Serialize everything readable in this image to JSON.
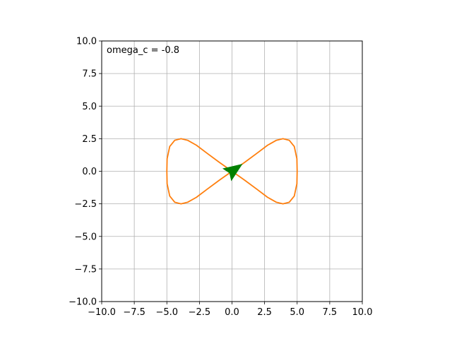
{
  "chart_data": {
    "type": "line",
    "title": "",
    "xlabel": "",
    "ylabel": "",
    "xlim": [
      -10,
      10
    ],
    "ylim": [
      -10,
      10
    ],
    "grid": true,
    "xticks": [
      -10.0,
      -7.5,
      -5.0,
      -2.5,
      0.0,
      2.5,
      5.0,
      7.5,
      10.0
    ],
    "yticks": [
      -10.0,
      -7.5,
      -5.0,
      -2.5,
      0.0,
      2.5,
      5.0,
      7.5,
      10.0
    ],
    "xtick_labels": [
      "−10.0",
      "−7.5",
      "−5.0",
      "−2.5",
      "0.0",
      "2.5",
      "5.0",
      "7.5",
      "10.0"
    ],
    "ytick_labels": [
      "−10.0",
      "−7.5",
      "−5.0",
      "−2.5",
      "0.0",
      "2.5",
      "5.0",
      "7.5",
      "10.0"
    ],
    "annotation": "omega_c = -0.8",
    "series": [
      {
        "color": "#ff7f0e",
        "x": [
          0.0,
          0.98,
          1.91,
          2.73,
          3.41,
          3.91,
          4.39,
          4.78,
          4.98,
          5.0,
          4.98,
          4.78,
          4.39,
          3.91,
          3.41,
          2.73,
          1.91,
          0.98,
          0.0,
          -0.98,
          -1.91,
          -2.73,
          -3.41,
          -3.91,
          -4.39,
          -4.78,
          -4.98,
          -5.0,
          -4.98,
          -4.78,
          -4.39,
          -3.91,
          -3.41,
          -2.73,
          -1.91,
          -0.98,
          0.0
        ],
        "y": [
          0.0,
          0.69,
          1.38,
          2.0,
          2.38,
          2.5,
          2.38,
          1.9,
          0.96,
          0.0,
          -0.96,
          -1.9,
          -2.38,
          -2.5,
          -2.38,
          -2.0,
          -1.38,
          -0.69,
          0.0,
          0.69,
          1.38,
          2.0,
          2.38,
          2.5,
          2.38,
          1.9,
          0.96,
          0.0,
          -0.96,
          -1.9,
          -2.38,
          -2.5,
          -2.38,
          -2.0,
          -1.38,
          -0.69,
          0.0
        ]
      }
    ],
    "marker": {
      "shape": "arrow",
      "color": "#008000",
      "x": 0.0,
      "y": 0.0,
      "heading_deg": 35
    }
  }
}
